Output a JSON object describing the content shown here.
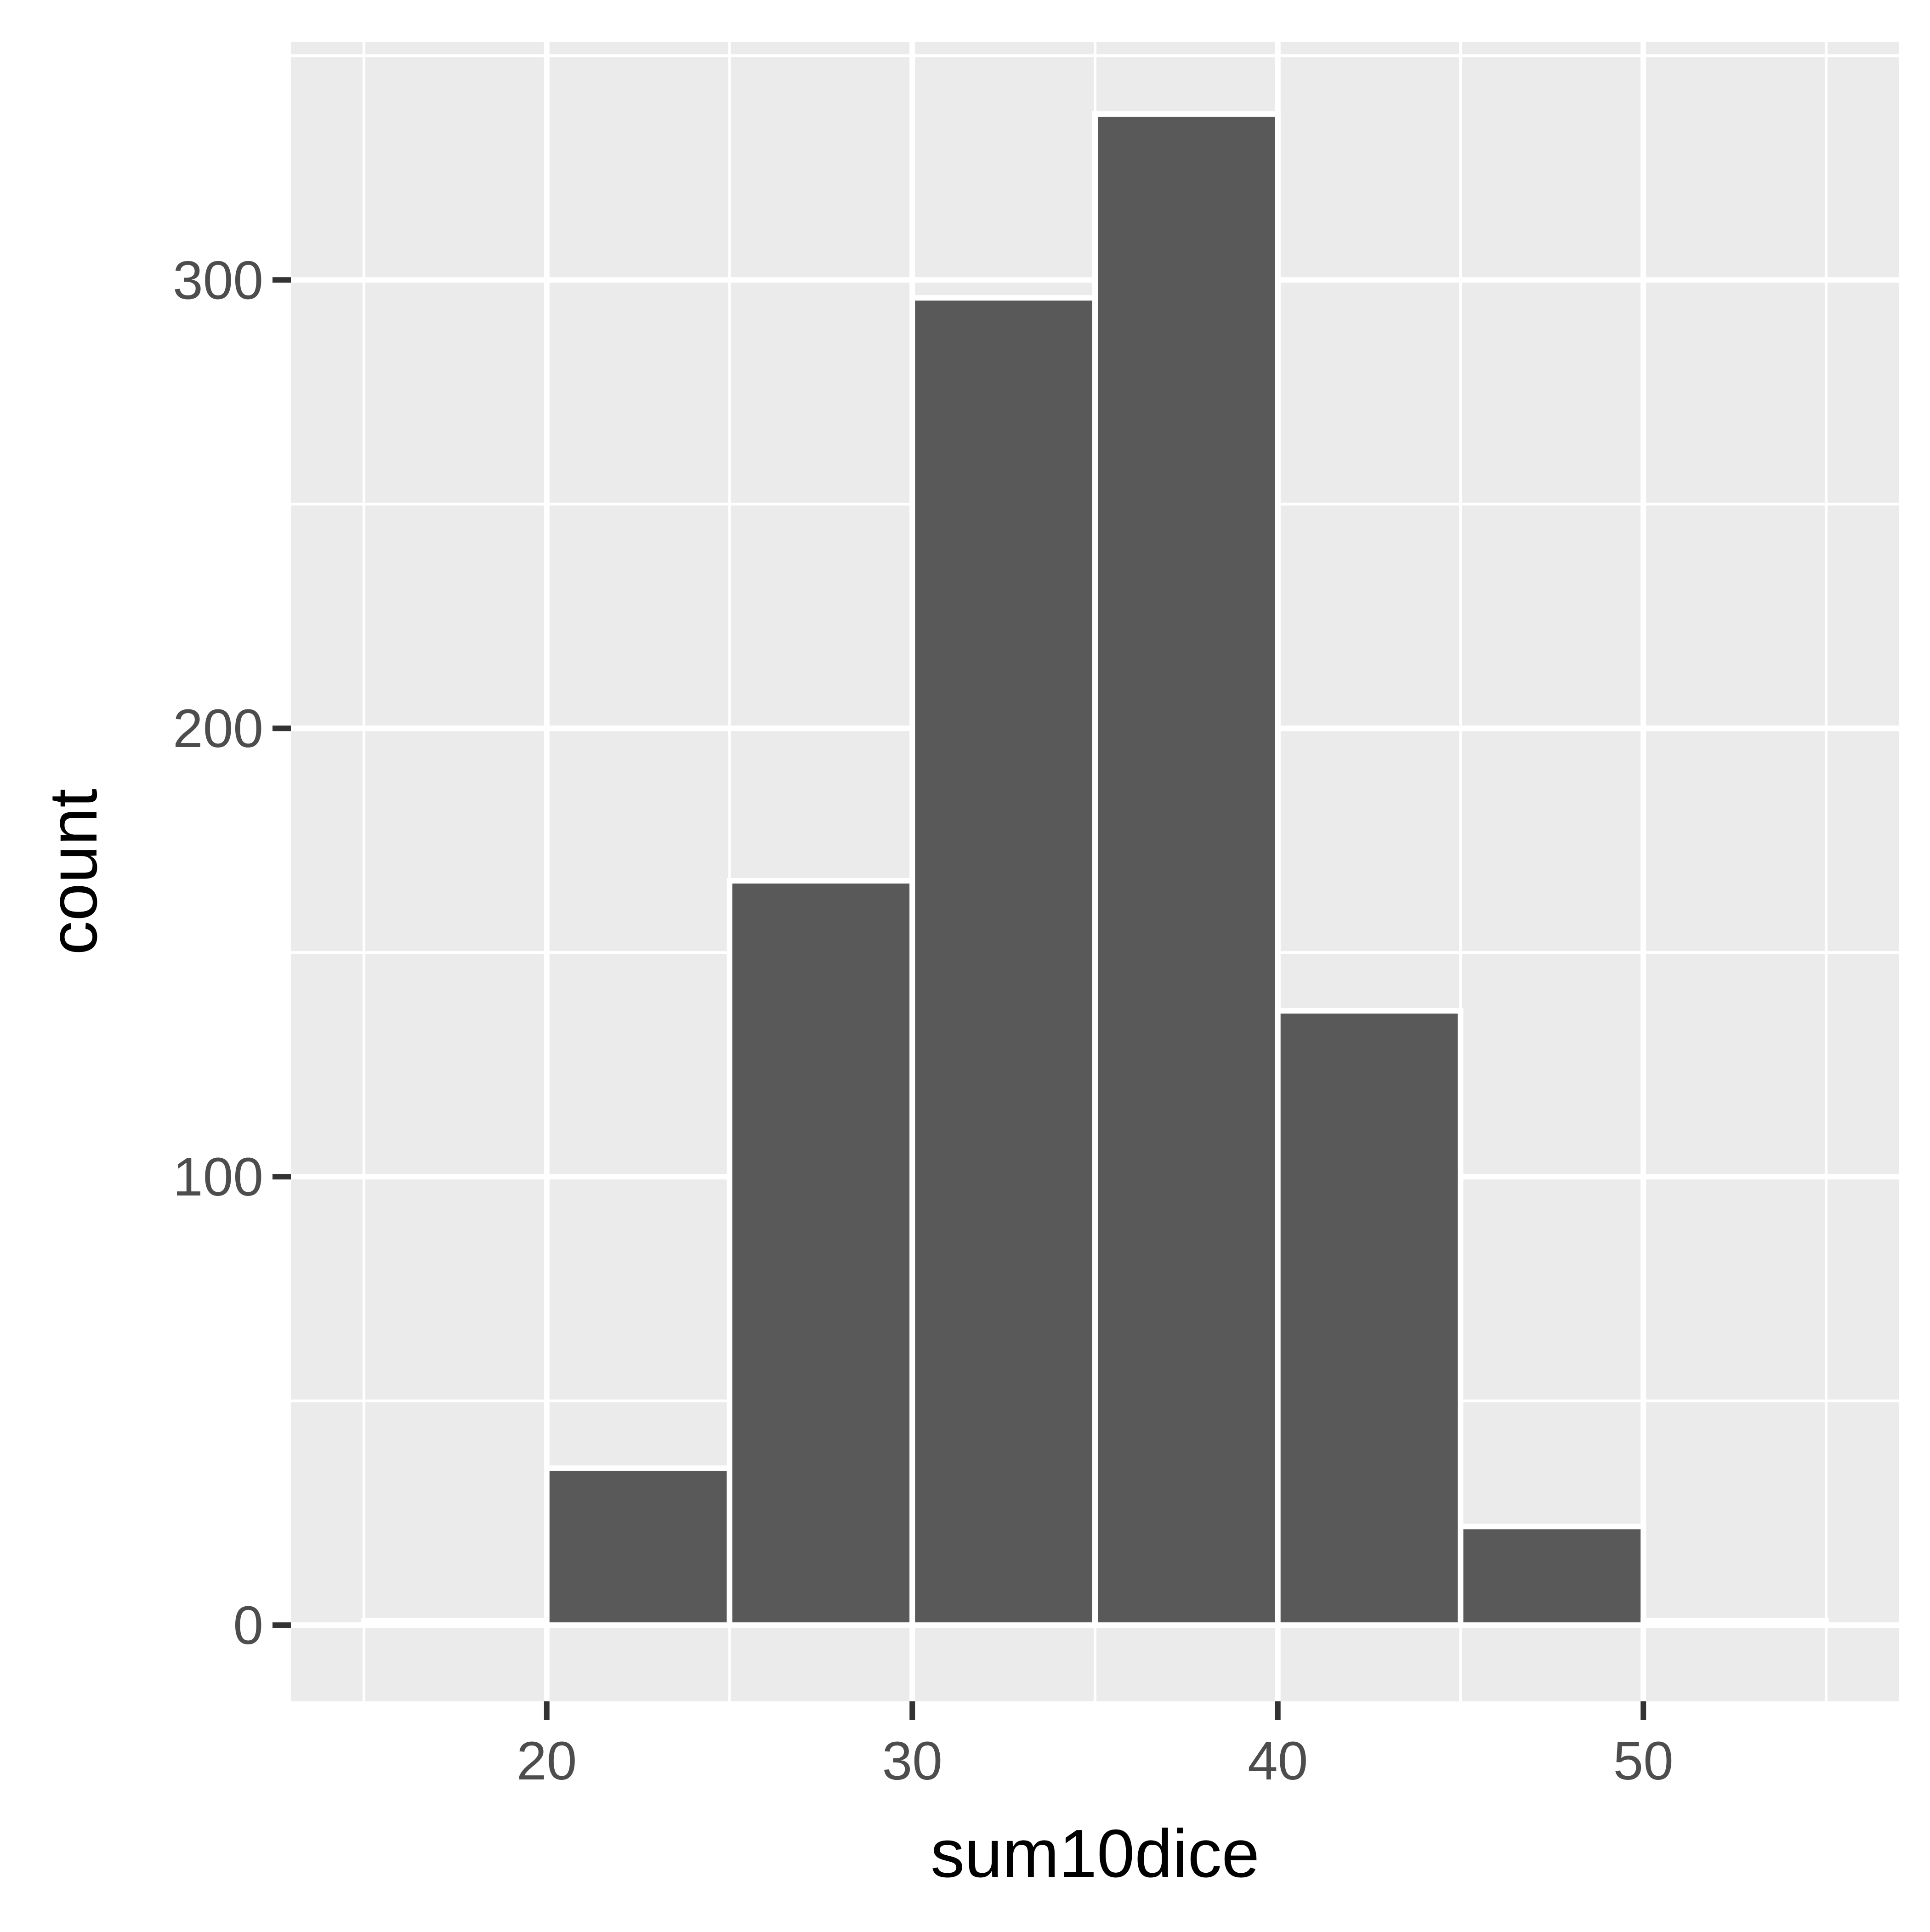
{
  "chart_data": {
    "type": "bar",
    "xlabel": "sum10dice",
    "ylabel": "count",
    "bins": [
      {
        "x0": 15,
        "x1": 20,
        "count": 1
      },
      {
        "x0": 20,
        "x1": 25,
        "count": 35
      },
      {
        "x0": 25,
        "x1": 30,
        "count": 166
      },
      {
        "x0": 30,
        "x1": 35,
        "count": 296
      },
      {
        "x0": 35,
        "x1": 40,
        "count": 337
      },
      {
        "x0": 40,
        "x1": 45,
        "count": 137
      },
      {
        "x0": 45,
        "x1": 50,
        "count": 22
      },
      {
        "x0": 50,
        "x1": 55,
        "count": 1
      }
    ],
    "x_ticks": [
      20,
      30,
      40,
      50
    ],
    "x_tick_labels": [
      "20",
      "30",
      "40",
      "50"
    ],
    "y_ticks": [
      0,
      100,
      200,
      300
    ],
    "y_tick_labels": [
      "0",
      "100",
      "200",
      "300"
    ],
    "xlim": [
      13,
      57
    ],
    "ylim": [
      -17,
      353
    ],
    "grid": true,
    "legend": "none",
    "colors": {
      "panel_background": "#ebebeb",
      "grid": "#ffffff",
      "bar_fill": "#595959",
      "bar_outline": "#ffffff",
      "tick_mark": "#333333"
    }
  }
}
